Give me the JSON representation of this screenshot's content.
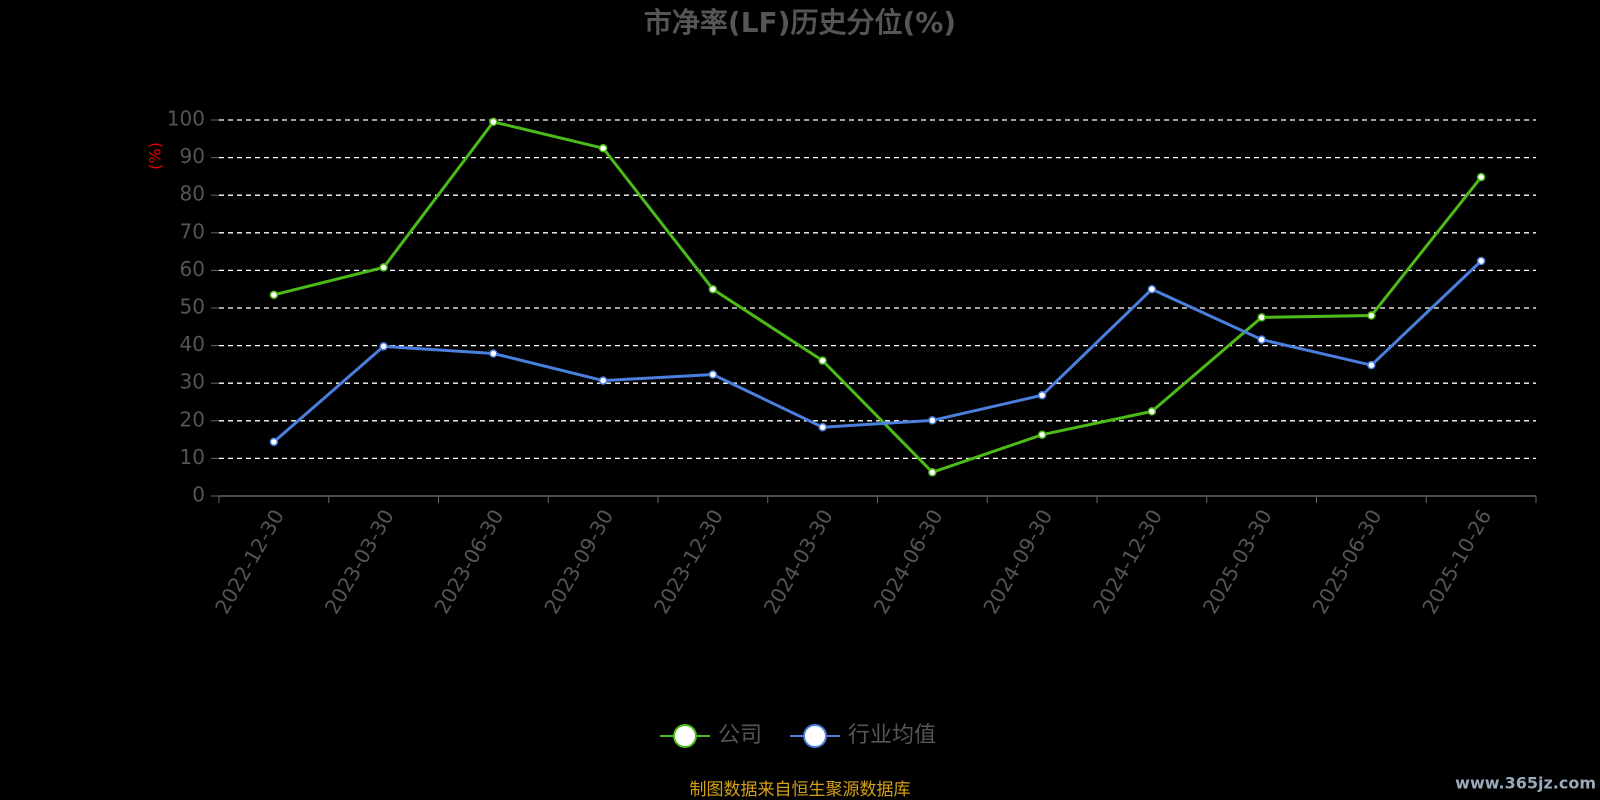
{
  "chart_data": {
    "type": "line",
    "title": "市净率(LF)历史分位(%)",
    "y_label": "(%)",
    "categories": [
      "2022-12-30",
      "2023-03-30",
      "2023-06-30",
      "2023-09-30",
      "2023-12-30",
      "2024-03-30",
      "2024-06-30",
      "2024-09-30",
      "2024-12-30",
      "2025-03-30",
      "2025-06-30",
      "2025-10-26"
    ],
    "series": [
      {
        "name": "公司",
        "color": "#4cbb17",
        "values": [
          53.5,
          60.8,
          99.5,
          92.5,
          55,
          36,
          6.3,
          16.3,
          22.5,
          47.5,
          48,
          84.8
        ]
      },
      {
        "name": "行业均值",
        "color": "#4a7fdd",
        "values": [
          14.4,
          39.8,
          37.9,
          30.7,
          32.3,
          18.3,
          20.1,
          26.8,
          55,
          41.6,
          34.8,
          62.5
        ]
      }
    ],
    "ylim": [
      0,
      100
    ],
    "yticks": [
      0,
      10,
      20,
      30,
      40,
      50,
      60,
      70,
      80,
      90,
      100
    ],
    "grid": true,
    "source": "制图数据来自恒生聚源数据库",
    "watermark": "www.365jz.com"
  }
}
